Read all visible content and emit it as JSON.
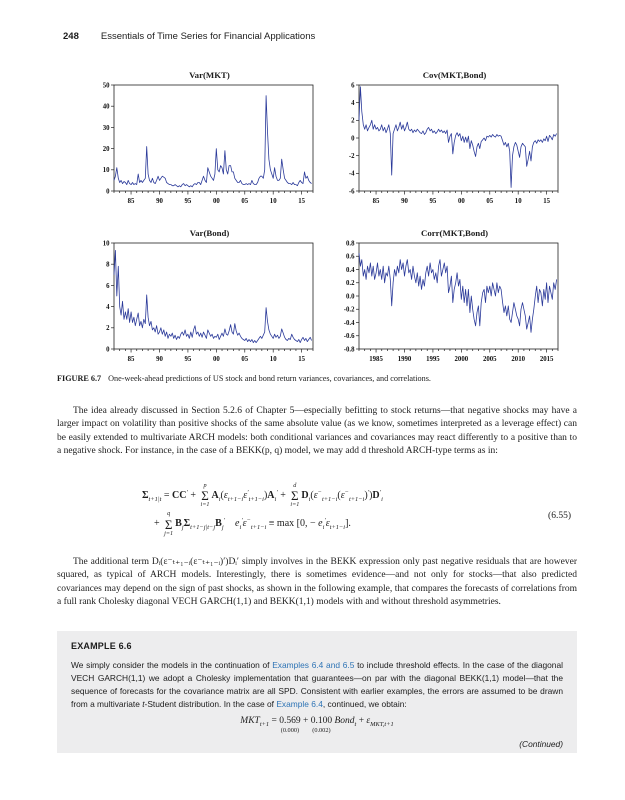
{
  "header": {
    "page_number": "248",
    "book_title": "Essentials of Time Series for Financial Applications"
  },
  "colors": {
    "line": "#2b3a9a",
    "link": "#2e74b5",
    "example_bg": "#ededee",
    "axis": "#222222"
  },
  "figure_caption": {
    "label": "FIGURE 6.7",
    "text": "One-week-ahead predictions of US stock and bond return variances, covariances, and correlations."
  },
  "paragraphs": {
    "p1": "The idea already discussed in Section 5.2.6 of Chapter 5—especially befitting to stock returns—that negative shocks may have a larger impact on volatility than positive shocks of the same absolute value (as we know, sometimes interpreted as a leverage effect) can be easily extended to multivariate ARCH models: both conditional variances and covariances may react differently to a positive than to a negative shock. For instance, in the case of a BEKK(p, q) model, we may add d threshold ARCH-type terms as in:",
    "p2": "The additional term Dᵢ(ε⁻ₜ₊₁₋ᵢ(ε⁻ₜ₊₁₋ᵢ)′)Dᵢ′ simply involves in the BEKK expression only past negative residuals that are however squared, as typical of ARCH models. Interestingly, there is sometimes evidence—and not only for stocks—that also predicted covariances may depend on the sign of past shocks, as shown in the following example, that compares the forecasts of correlations from a full rank Cholesky diagonal VECH GARCH(1,1) and BEKK(1,1) models with and without threshold asymmetries."
  },
  "equation_655": {
    "number": "(6.55)",
    "line1": [
      {
        "s": "b",
        "t": "Σ"
      },
      {
        "s": "sub",
        "t": "t+1|t"
      },
      {
        "s": "n",
        "t": " = "
      },
      {
        "s": "b",
        "t": "CC"
      },
      {
        "s": "sup",
        "t": "′"
      },
      {
        "s": "n",
        "t": " + "
      },
      {
        "s": "sum",
        "t": "p|i=1"
      },
      {
        "s": "b",
        "t": "A"
      },
      {
        "s": "sub",
        "t": "i"
      },
      {
        "s": "n",
        "t": "("
      },
      {
        "s": "i",
        "t": "ε"
      },
      {
        "s": "sub",
        "t": "t+1−i"
      },
      {
        "s": "i",
        "t": "ε"
      },
      {
        "s": "sup",
        "t": "′"
      },
      {
        "s": "sub",
        "t": "t+1−i"
      },
      {
        "s": "n",
        "t": ")"
      },
      {
        "s": "b",
        "t": "A"
      },
      {
        "s": "sub",
        "t": "i"
      },
      {
        "s": "sup",
        "t": "′"
      },
      {
        "s": "n",
        "t": " + "
      },
      {
        "s": "sum",
        "t": "d|i=1"
      },
      {
        "s": "b",
        "t": "D"
      },
      {
        "s": "sub",
        "t": "i"
      },
      {
        "s": "n",
        "t": "("
      },
      {
        "s": "i",
        "t": "ε"
      },
      {
        "s": "sup",
        "t": "−"
      },
      {
        "s": "sub",
        "t": "t+1−i"
      },
      {
        "s": "n",
        "t": "("
      },
      {
        "s": "i",
        "t": "ε"
      },
      {
        "s": "sup",
        "t": "−"
      },
      {
        "s": "sub",
        "t": "t+1−i"
      },
      {
        "s": "n",
        "t": ")"
      },
      {
        "s": "sup",
        "t": "′"
      },
      {
        "s": "n",
        "t": ")"
      },
      {
        "s": "b",
        "t": "D"
      },
      {
        "s": "sup",
        "t": "′"
      },
      {
        "s": "sub",
        "t": "i"
      }
    ],
    "line2": [
      {
        "s": "n",
        "t": "+ "
      },
      {
        "s": "sum",
        "t": "q|j=1"
      },
      {
        "s": "b",
        "t": "B"
      },
      {
        "s": "sub",
        "t": "j"
      },
      {
        "s": "b",
        "t": "Σ"
      },
      {
        "s": "sub",
        "t": "t+1−j|t−j"
      },
      {
        "s": "b",
        "t": "B"
      },
      {
        "s": "sub",
        "t": "j"
      },
      {
        "s": "sup",
        "t": "′"
      },
      {
        "s": "n",
        "t": "    "
      },
      {
        "s": "i",
        "t": "e"
      },
      {
        "s": "sub",
        "t": "i"
      },
      {
        "s": "sup",
        "t": "′"
      },
      {
        "s": "i",
        "t": "ε"
      },
      {
        "s": "sup",
        "t": "−"
      },
      {
        "s": "sub",
        "t": "t+1−i"
      },
      {
        "s": "n",
        "t": " ≡ max [0, − "
      },
      {
        "s": "i",
        "t": "e"
      },
      {
        "s": "sub",
        "t": "i"
      },
      {
        "s": "sup",
        "t": "′"
      },
      {
        "s": "i",
        "t": "ε"
      },
      {
        "s": "sub",
        "t": "t+1−i"
      },
      {
        "s": "n",
        "t": "]."
      }
    ]
  },
  "example": {
    "title": "EXAMPLE 6.6",
    "body_segments": [
      {
        "t": "We simply consider the models in the continuation of "
      },
      {
        "t": "Examples 6.4 and 6.5",
        "style": "link"
      },
      {
        "t": " to include threshold effects. In the case of the diagonal VECH GARCH(1,1) we adopt a Cholesky implementation that guarantees—on par with the diagonal BEKK(1,1) model—that the sequence of forecasts for the covariance matrix are all SPD. Consistent with earlier examples, the errors are assumed to be drawn from a multivariate "
      },
      {
        "t": "t",
        "style": "italic"
      },
      {
        "t": "-Student distribution. In the case of "
      },
      {
        "t": "Example 6.4",
        "style": "link"
      },
      {
        "t": ", continued, we obtain:"
      }
    ],
    "equation": [
      {
        "s": "i",
        "t": "MKT"
      },
      {
        "s": "sub",
        "t": "t+1"
      },
      {
        "s": "n",
        "t": " = "
      },
      {
        "s": "under",
        "t": "0.569|(0.000)"
      },
      {
        "s": "n",
        "t": " + "
      },
      {
        "s": "under",
        "t": "0.100|(0.002)"
      },
      {
        "s": "n",
        "t": " "
      },
      {
        "s": "i",
        "t": "Bond"
      },
      {
        "s": "sub",
        "t": "t"
      },
      {
        "s": "n",
        "t": " + "
      },
      {
        "s": "i",
        "t": "ε"
      },
      {
        "s": "sub",
        "t": "MKT,t+1"
      }
    ],
    "continued": "(Continued)"
  },
  "chart_data": [
    {
      "type": "line",
      "title": "Var(MKT)",
      "xlim": [
        1982,
        2017
      ],
      "ylim": [
        0,
        50
      ],
      "yticks": [
        0,
        10,
        20,
        30,
        40,
        50
      ],
      "ytick_labels": [
        "0",
        "10",
        "20",
        "30",
        "40",
        "50"
      ],
      "xticks": [
        {
          "year": 1985,
          "label": "85"
        },
        {
          "year": 1990,
          "label": "90"
        },
        {
          "year": 1995,
          "label": "95"
        },
        {
          "year": 2000,
          "label": "00"
        },
        {
          "year": 2005,
          "label": "05"
        },
        {
          "year": 2010,
          "label": "10"
        },
        {
          "year": 2015,
          "label": "15"
        }
      ],
      "x_start": 1982,
      "x_step": 0.25,
      "values": [
        5,
        7,
        11,
        6,
        4,
        5,
        3.5,
        4.5,
        4,
        3,
        5,
        3.5,
        3,
        4,
        3,
        3.5,
        3,
        8,
        4,
        5,
        4,
        5,
        6,
        21,
        8,
        5,
        4,
        6,
        4,
        3.5,
        5,
        7,
        5,
        6,
        7,
        6.5,
        6,
        4,
        3.5,
        3,
        3,
        2.5,
        2.5,
        3,
        2.5,
        2,
        2.5,
        2,
        3,
        3.5,
        2.5,
        3,
        2.5,
        2,
        2.5,
        2,
        3,
        3.5,
        3,
        4,
        4,
        3,
        5,
        7,
        5,
        4,
        11,
        9,
        7,
        6,
        5,
        8,
        20,
        10,
        9,
        12,
        11,
        8,
        19,
        10,
        8,
        12,
        12,
        9,
        9,
        6,
        5,
        4,
        4,
        5,
        3.5,
        3,
        3,
        3.5,
        3,
        3.5,
        3,
        5,
        3.5,
        3,
        3,
        4,
        6,
        7,
        7,
        6,
        10,
        45,
        28,
        15,
        10,
        8,
        6,
        11,
        7,
        5,
        5,
        6,
        15,
        10,
        6,
        5,
        4,
        3.5,
        3.5,
        3,
        4,
        3,
        3,
        2.5,
        4,
        5,
        4,
        3.5,
        9,
        6,
        7,
        5,
        4,
        3.5
      ]
    },
    {
      "type": "line",
      "title": "Cov(MKT,Bond)",
      "xlim": [
        1982,
        2017
      ],
      "ylim": [
        -6,
        6
      ],
      "yticks": [
        -6,
        -4,
        -2,
        0,
        2,
        4,
        6
      ],
      "ytick_labels": [
        "-6",
        "-4",
        "-2",
        "0",
        "2",
        "4",
        "6"
      ],
      "xticks": [
        {
          "year": 1985,
          "label": "85"
        },
        {
          "year": 1990,
          "label": "90"
        },
        {
          "year": 1995,
          "label": "95"
        },
        {
          "year": 2000,
          "label": "00"
        },
        {
          "year": 2005,
          "label": "05"
        },
        {
          "year": 2010,
          "label": "10"
        },
        {
          "year": 2015,
          "label": "15"
        }
      ],
      "x_start": 1982,
      "x_step": 0.25,
      "values": [
        2,
        5.8,
        3,
        1.5,
        1,
        1.5,
        0.8,
        1.2,
        1.5,
        2,
        1,
        1.5,
        1,
        1.2,
        0.8,
        1,
        1.5,
        0.8,
        1.2,
        0.6,
        1,
        1.5,
        0.5,
        -4.2,
        0.5,
        1,
        1.5,
        0.8,
        1.2,
        1.8,
        1,
        1.5,
        0.8,
        1.2,
        1.8,
        1,
        0.8,
        1,
        0.6,
        0.9,
        0.7,
        1,
        0.8,
        0.6,
        0.5,
        0.8,
        0.4,
        0.6,
        1,
        1.2,
        0.8,
        1,
        0.6,
        0.8,
        0.5,
        0.7,
        1,
        0.7,
        0.9,
        0.6,
        0.8,
        0.5,
        0.9,
        -0.5,
        0.2,
        0.5,
        -1.8,
        -0.5,
        0.3,
        0.6,
        0.2,
        0.5,
        -0.3,
        0.2,
        -0.5,
        0.1,
        -0.5,
        0.2,
        -1.2,
        -0.3,
        -0.8,
        -1.5,
        -2.1,
        -1,
        -0.6,
        -1.2,
        -0.4,
        -0.2,
        0,
        -0.3,
        0.2,
        0.1,
        0.3,
        0.1,
        0.4,
        0.2,
        0.1,
        0.4,
        0.2,
        0.3,
        0.2,
        -0.3,
        -0.8,
        -0.5,
        -1,
        -0.6,
        -1.5,
        -5.6,
        -2,
        -1,
        -0.5,
        -0.8,
        -1.5,
        -2.2,
        -1,
        -0.6,
        -0.8,
        -1,
        -3.2,
        -2.4,
        -1.5,
        -2.6,
        -1,
        -0.5,
        -0.3,
        -0.6,
        -0.2,
        -0.4,
        -0.2,
        -0.5,
        -0.1,
        -0.3,
        0.2,
        -0.4,
        0.3,
        0.1,
        -0.2,
        0.4,
        0.2,
        0.5
      ]
    },
    {
      "type": "line",
      "title": "Var(Bond)",
      "xlim": [
        1982,
        2017
      ],
      "ylim": [
        0,
        10
      ],
      "yticks": [
        0,
        2,
        4,
        6,
        8,
        10
      ],
      "ytick_labels": [
        "0",
        "2",
        "4",
        "6",
        "8",
        "10"
      ],
      "xticks": [
        {
          "year": 1985,
          "label": "85"
        },
        {
          "year": 1990,
          "label": "90"
        },
        {
          "year": 1995,
          "label": "95"
        },
        {
          "year": 2000,
          "label": "00"
        },
        {
          "year": 2005,
          "label": "05"
        },
        {
          "year": 2010,
          "label": "10"
        },
        {
          "year": 2015,
          "label": "15"
        }
      ],
      "x_start": 1982,
      "x_step": 0.25,
      "values": [
        7,
        9.3,
        5,
        7.8,
        4,
        3.2,
        4.5,
        2.8,
        3.5,
        2.8,
        3.8,
        2.5,
        3.5,
        2.5,
        3,
        2.2,
        2.8,
        3.4,
        2.2,
        2.6,
        2,
        2.8,
        2.4,
        5.1,
        3,
        2.2,
        2.6,
        1.8,
        2,
        1.6,
        2.2,
        1.4,
        1.6,
        2,
        1.4,
        1.8,
        1.2,
        1.6,
        1,
        1.4,
        1.2,
        1.5,
        1,
        1.3,
        0.9,
        1.2,
        1,
        1.4,
        1.6,
        1.3,
        1.8,
        1.2,
        1.4,
        1,
        1.6,
        1.1,
        1.8,
        2.2,
        1.4,
        1.6,
        1.2,
        1.5,
        1.1,
        1.6,
        1.3,
        1,
        1.8,
        1.5,
        1.2,
        1.4,
        1,
        1.2,
        1.1,
        1.4,
        0.9,
        1.2,
        1.5,
        1.2,
        1.9,
        1.4,
        1.3,
        1.7,
        2.3,
        1.6,
        1.4,
        2.4,
        1.7,
        1.3,
        1.5,
        1.2,
        1,
        0.9,
        0.8,
        1,
        0.7,
        0.9,
        0.7,
        0.9,
        0.6,
        0.8,
        0.6,
        0.8,
        1,
        1.2,
        1,
        1.3,
        1.6,
        3.9,
        2.6,
        1.8,
        1.4,
        1.2,
        1,
        1.4,
        1.1,
        1.3,
        1,
        1.2,
        1.9,
        1.5,
        1.1,
        0.9,
        0.8,
        1,
        0.9,
        1.4,
        1.1,
        0.9,
        0.8,
        0.7,
        0.9,
        0.6,
        0.9,
        1.1,
        0.8,
        1,
        0.7,
        0.9,
        1.1,
        0.8
      ]
    },
    {
      "type": "line",
      "title": "Corr(MKT,Bond)",
      "xlim": [
        1982,
        2017
      ],
      "ylim": [
        -0.8,
        0.8
      ],
      "yticks": [
        -0.8,
        -0.6,
        -0.4,
        -0.2,
        0,
        0.2,
        0.4,
        0.6,
        0.8
      ],
      "ytick_labels": [
        "-0.8",
        "-0.6",
        "-0.4",
        "-0.2",
        "0.0",
        "0.2",
        "0.4",
        "0.6",
        "0.8"
      ],
      "xticks": [
        {
          "year": 1985,
          "label": "1985"
        },
        {
          "year": 1990,
          "label": "1990"
        },
        {
          "year": 1995,
          "label": "1995"
        },
        {
          "year": 2000,
          "label": "2000"
        },
        {
          "year": 2005,
          "label": "2005"
        },
        {
          "year": 2010,
          "label": "2010"
        },
        {
          "year": 2015,
          "label": "2015"
        }
      ],
      "x_start": 1982,
      "x_step": 0.25,
      "values": [
        0.65,
        0.45,
        0.55,
        0.3,
        0.4,
        0.25,
        0.45,
        0.35,
        0.5,
        0.3,
        0.45,
        0.25,
        0.35,
        0.5,
        0.3,
        0.4,
        0.25,
        0.45,
        0.2,
        0.35,
        0.3,
        0.45,
        0.25,
        -0.15,
        0.2,
        0.4,
        0.3,
        0.45,
        0.35,
        0.55,
        0.4,
        0.5,
        0.3,
        0.45,
        0.55,
        0.35,
        0.4,
        0.25,
        0.45,
        0.3,
        0.2,
        0.35,
        0.15,
        0.3,
        0.1,
        0.25,
        0.15,
        0.35,
        0.45,
        0.3,
        0.5,
        0.35,
        0.4,
        0.25,
        0.35,
        0.2,
        0.45,
        0.55,
        0.3,
        0.4,
        0.5,
        0.35,
        0.45,
        0.05,
        0.15,
        0.3,
        -0.1,
        0.1,
        0.2,
        0.35,
        0.15,
        0.25,
        -0.05,
        0.15,
        -0.1,
        0.1,
        -0.15,
        0.1,
        -0.25,
        0,
        -0.2,
        -0.35,
        -0.45,
        -0.25,
        -0.15,
        -0.45,
        -0.1,
        0.05,
        0.1,
        -0.1,
        0.15,
        0.05,
        0.15,
        0,
        0.2,
        0.1,
        0,
        0.2,
        0.05,
        0.15,
        0.1,
        -0.1,
        -0.25,
        -0.15,
        -0.3,
        -0.15,
        -0.35,
        -0.4,
        -0.25,
        -0.1,
        -0.2,
        -0.3,
        -0.35,
        -0.45,
        -0.2,
        -0.1,
        -0.2,
        -0.3,
        -0.5,
        -0.4,
        -0.3,
        -0.55,
        -0.35,
        -0.2,
        0,
        0.15,
        -0.1,
        0.1,
        0.05,
        -0.15,
        0.1,
        -0.05,
        0.2,
        -0.1,
        0.15,
        0.05,
        -0.05,
        0.2,
        0.1,
        0.25
      ]
    }
  ]
}
